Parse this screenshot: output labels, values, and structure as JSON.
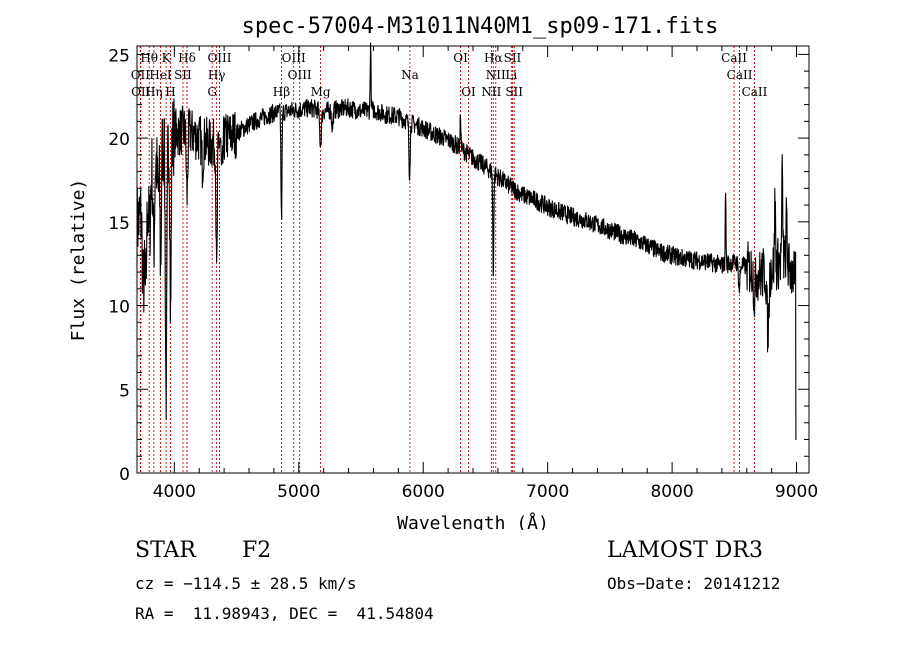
{
  "chart_data": {
    "type": "line",
    "title": "spec-57004-M31011N40M1_sp09-171.fits",
    "xlabel": "Wavelength (Å)",
    "ylabel": "Flux (relative)",
    "xlim": [
      3700,
      9100
    ],
    "ylim": [
      0,
      25.5
    ],
    "xticks": [
      4000,
      5000,
      6000,
      7000,
      8000,
      9000
    ],
    "yticks": [
      0,
      5,
      10,
      15,
      20,
      25
    ],
    "line_color": "#000000",
    "marker_color": "#cc0000",
    "continuum": [
      [
        3700,
        15
      ],
      [
        3800,
        18
      ],
      [
        3900,
        19.5
      ],
      [
        4000,
        20.3
      ],
      [
        4100,
        20.5
      ],
      [
        4200,
        20.0
      ],
      [
        4300,
        19.6
      ],
      [
        4400,
        20.0
      ],
      [
        4500,
        20.3
      ],
      [
        4600,
        20.8
      ],
      [
        4700,
        21.2
      ],
      [
        4800,
        21.5
      ],
      [
        4900,
        21.6
      ],
      [
        5000,
        21.7
      ],
      [
        5100,
        21.8
      ],
      [
        5200,
        21.6
      ],
      [
        5300,
        21.7
      ],
      [
        5400,
        21.8
      ],
      [
        5500,
        21.6
      ],
      [
        5600,
        21.7
      ],
      [
        5700,
        21.4
      ],
      [
        5800,
        21.3
      ],
      [
        5900,
        20.9
      ],
      [
        6000,
        20.6
      ],
      [
        6100,
        20.2
      ],
      [
        6200,
        19.9
      ],
      [
        6300,
        19.4
      ],
      [
        6400,
        18.8
      ],
      [
        6500,
        18.3
      ],
      [
        6600,
        17.7
      ],
      [
        6700,
        17.1
      ],
      [
        6800,
        16.6
      ],
      [
        6900,
        16.3
      ],
      [
        7000,
        15.9
      ],
      [
        7100,
        15.6
      ],
      [
        7200,
        15.3
      ],
      [
        7300,
        15.1
      ],
      [
        7400,
        14.8
      ],
      [
        7500,
        14.5
      ],
      [
        7600,
        14.2
      ],
      [
        7700,
        13.9
      ],
      [
        7800,
        13.6
      ],
      [
        7900,
        13.2
      ],
      [
        8000,
        13.0
      ],
      [
        8100,
        12.8
      ],
      [
        8200,
        12.7
      ],
      [
        8300,
        12.6
      ],
      [
        8400,
        12.4
      ],
      [
        8500,
        12.6
      ],
      [
        8600,
        12.3
      ],
      [
        8700,
        11.8
      ],
      [
        8800,
        12.2
      ],
      [
        8900,
        12.8
      ],
      [
        9000,
        11.5
      ]
    ],
    "absorption_dips": [
      [
        3720,
        0.4,
        12
      ],
      [
        3750,
        5,
        8
      ],
      [
        3770,
        6,
        8
      ],
      [
        3800,
        3.5,
        8
      ],
      [
        3835,
        5,
        6
      ],
      [
        3870,
        2.5,
        7
      ],
      [
        3890,
        7,
        5
      ],
      [
        3934,
        15,
        6
      ],
      [
        3970,
        11,
        5
      ],
      [
        4102,
        4,
        6
      ],
      [
        4226,
        1.5,
        6
      ],
      [
        4340,
        8,
        5
      ],
      [
        4383,
        2.5,
        6
      ],
      [
        4861,
        6.5,
        4
      ],
      [
        5175,
        2,
        7
      ],
      [
        5270,
        1,
        6
      ],
      [
        5890,
        3,
        5
      ],
      [
        6563,
        6,
        4
      ],
      [
        8540,
        1.5,
        6
      ],
      [
        8662,
        1.5,
        6
      ],
      [
        8770,
        3.5,
        8
      ]
    ],
    "emission_spikes": [
      [
        5577,
        4,
        3
      ],
      [
        6300,
        2,
        3
      ],
      [
        8430,
        4.5,
        3
      ],
      [
        8827,
        4,
        4
      ],
      [
        8885,
        5,
        4
      ],
      [
        8920,
        3,
        4
      ]
    ],
    "spectral_lines": [
      {
        "label": "Hθ",
        "wl": 3798,
        "row": 0
      },
      {
        "label": "K",
        "wl": 3934,
        "row": 0
      },
      {
        "label": "Hδ",
        "wl": 4102,
        "row": 0
      },
      {
        "label": "OIII",
        "wl": 4363,
        "row": 0
      },
      {
        "label": "OIII",
        "wl": 4959,
        "row": 0
      },
      {
        "label": "OI",
        "wl": 6300,
        "row": 0
      },
      {
        "label": "Hα",
        "wl": 6563,
        "row": 0
      },
      {
        "label": "SII",
        "wl": 6717,
        "row": 0
      },
      {
        "label": "CaII",
        "wl": 8498,
        "row": 0
      },
      {
        "label": "OII",
        "wl": 3727,
        "row": 1
      },
      {
        "label": "HeI",
        "wl": 3889,
        "row": 1
      },
      {
        "label": "SII",
        "wl": 4069,
        "row": 1
      },
      {
        "label": "Hγ",
        "wl": 4340,
        "row": 1
      },
      {
        "label": "OIII",
        "wl": 5007,
        "row": 1
      },
      {
        "label": "Na",
        "wl": 5893,
        "row": 1
      },
      {
        "label": "NII",
        "wl": 6583,
        "row": 1
      },
      {
        "label": "Li",
        "wl": 6708,
        "row": 1
      },
      {
        "label": "CaII",
        "wl": 8542,
        "row": 1
      },
      {
        "label": "OII",
        "wl": 3730,
        "row": 2
      },
      {
        "label": "Hη",
        "wl": 3835,
        "row": 2
      },
      {
        "label": "H",
        "wl": 3969,
        "row": 2
      },
      {
        "label": "G",
        "wl": 4304,
        "row": 2
      },
      {
        "label": "Hβ",
        "wl": 4861,
        "row": 2
      },
      {
        "label": "Mg",
        "wl": 5175,
        "row": 2
      },
      {
        "label": "OI",
        "wl": 6364,
        "row": 2
      },
      {
        "label": "NII",
        "wl": 6548,
        "row": 2
      },
      {
        "label": "SII",
        "wl": 6731,
        "row": 2
      },
      {
        "label": "CaII",
        "wl": 8662,
        "row": 2
      }
    ]
  },
  "info": {
    "object_type": "STAR",
    "subclass": "F2",
    "survey": "LAMOST DR3",
    "cz": "cz = −114.5 ± 28.5 km/s",
    "obs_date": "Obs−Date: 20141212",
    "coords": "RA =  11.98943, DEC =  41.54804"
  }
}
